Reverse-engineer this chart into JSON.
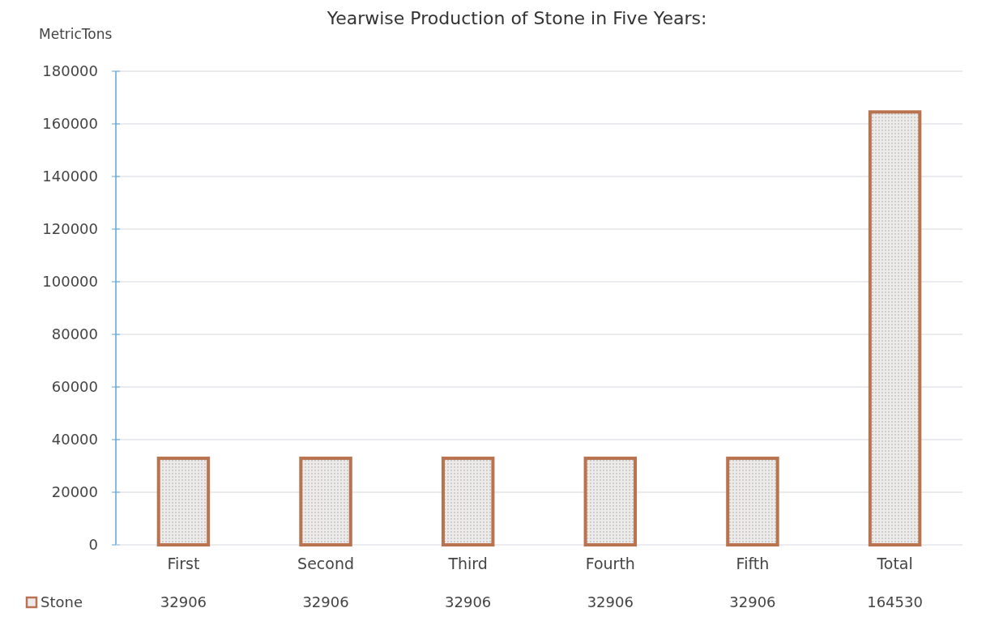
{
  "chart_data": {
    "type": "bar",
    "title": "Yearwise Production of Stone in Five Years:",
    "ylabel": "MetricTons",
    "categories": [
      "First",
      "Second",
      "Third",
      "Fourth",
      "Fifth",
      "Total"
    ],
    "series": [
      {
        "name": "Stone",
        "color": "#b9734f",
        "values": [
          32906,
          32906,
          32906,
          32906,
          32906,
          164530
        ]
      }
    ],
    "ylim": [
      0,
      180000
    ],
    "yticks": [
      0,
      20000,
      40000,
      60000,
      80000,
      100000,
      120000,
      140000,
      160000,
      180000
    ],
    "grid": "y",
    "data_labels": true,
    "legend": "bottom left"
  }
}
